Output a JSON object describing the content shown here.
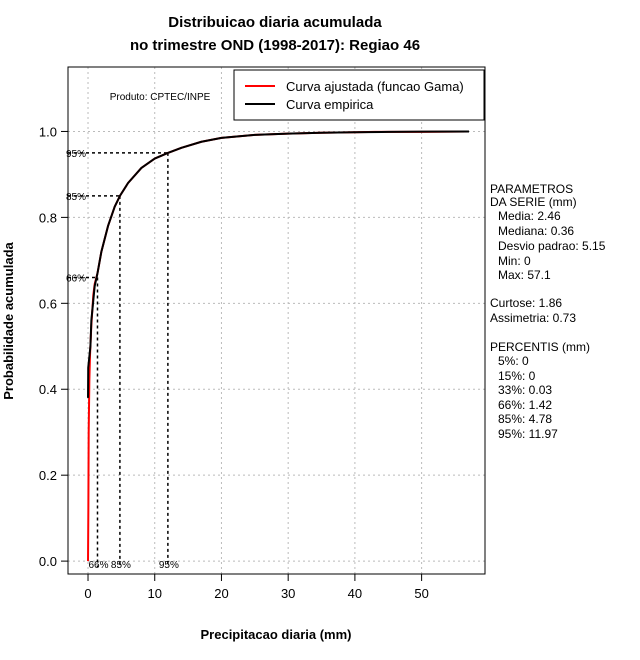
{
  "chart_data": {
    "type": "line",
    "title_line1": "Distribuicao diaria acumulada",
    "title_line2": "no trimestre OND (1998-2017): Regiao 46",
    "xlabel": "Precipitacao diaria (mm)",
    "ylabel": "Probabilidade acumulada",
    "xlim": [
      -3,
      59.5
    ],
    "ylim": [
      -0.03,
      1.15
    ],
    "x_ticks": [
      0,
      10,
      20,
      30,
      40,
      50
    ],
    "y_ticks": [
      0.0,
      0.2,
      0.4,
      0.6,
      0.8,
      1.0
    ],
    "y_tick_labels": [
      "0.0",
      "0.2",
      "0.4",
      "0.6",
      "0.8",
      "1.0"
    ],
    "grid": true,
    "legend_position": "top-right",
    "product_label": "Produto: CPTEC/INPE",
    "series": [
      {
        "name": "Curva ajustada (funcao Gama)",
        "color": "#ff0000",
        "x": [
          0,
          0.05,
          0.1,
          0.2,
          0.3,
          0.5,
          0.8,
          1.0,
          1.42,
          2,
          3,
          4,
          4.78,
          6,
          8,
          10,
          11.97,
          14,
          17,
          20,
          25,
          30,
          35,
          40,
          43,
          50,
          57.1
        ],
        "y": [
          0,
          0.12,
          0.3,
          0.42,
          0.48,
          0.55,
          0.62,
          0.645,
          0.67,
          0.72,
          0.78,
          0.825,
          0.85,
          0.88,
          0.915,
          0.937,
          0.95,
          0.962,
          0.976,
          0.985,
          0.992,
          0.995,
          0.997,
          0.998,
          0.999,
          0.999,
          1.0
        ]
      },
      {
        "name": "Curva empirica",
        "color": "#000000",
        "x": [
          0,
          0.03,
          0.36,
          0.5,
          1.0,
          1.42,
          2,
          3,
          4,
          4.78,
          6,
          8,
          10,
          11.97,
          14,
          17,
          20,
          25,
          30,
          35,
          40,
          45,
          50,
          57.1
        ],
        "y": [
          0.38,
          0.45,
          0.5,
          0.56,
          0.64,
          0.67,
          0.72,
          0.78,
          0.825,
          0.85,
          0.88,
          0.915,
          0.937,
          0.95,
          0.962,
          0.976,
          0.985,
          0.992,
          0.995,
          0.997,
          0.998,
          0.999,
          0.9995,
          1.0
        ]
      }
    ],
    "percentile_markers": [
      {
        "label": "66%",
        "prob": 0.66,
        "value": 1.42
      },
      {
        "label": "85%",
        "prob": 0.85,
        "value": 4.78
      },
      {
        "label": "95%",
        "prob": 0.95,
        "value": 11.97
      }
    ]
  },
  "stats": {
    "header1": "PARAMETROS",
    "header2": "DA SERIE (mm)",
    "media": "Media: 2.46",
    "mediana": "Mediana: 0.36",
    "desvio": "Desvio padrao: 5.15",
    "min": "Min: 0",
    "max": "Max: 57.1",
    "curtose": "Curtose: 1.86",
    "assimetria": "Assimetria: 0.73",
    "perc_header": "PERCENTIS (mm)",
    "p5": "5%: 0",
    "p15": "15%: 0",
    "p33": "33%: 0.03",
    "p66": "66%: 1.42",
    "p85": "85%: 4.78",
    "p95": "95%: 11.97"
  }
}
